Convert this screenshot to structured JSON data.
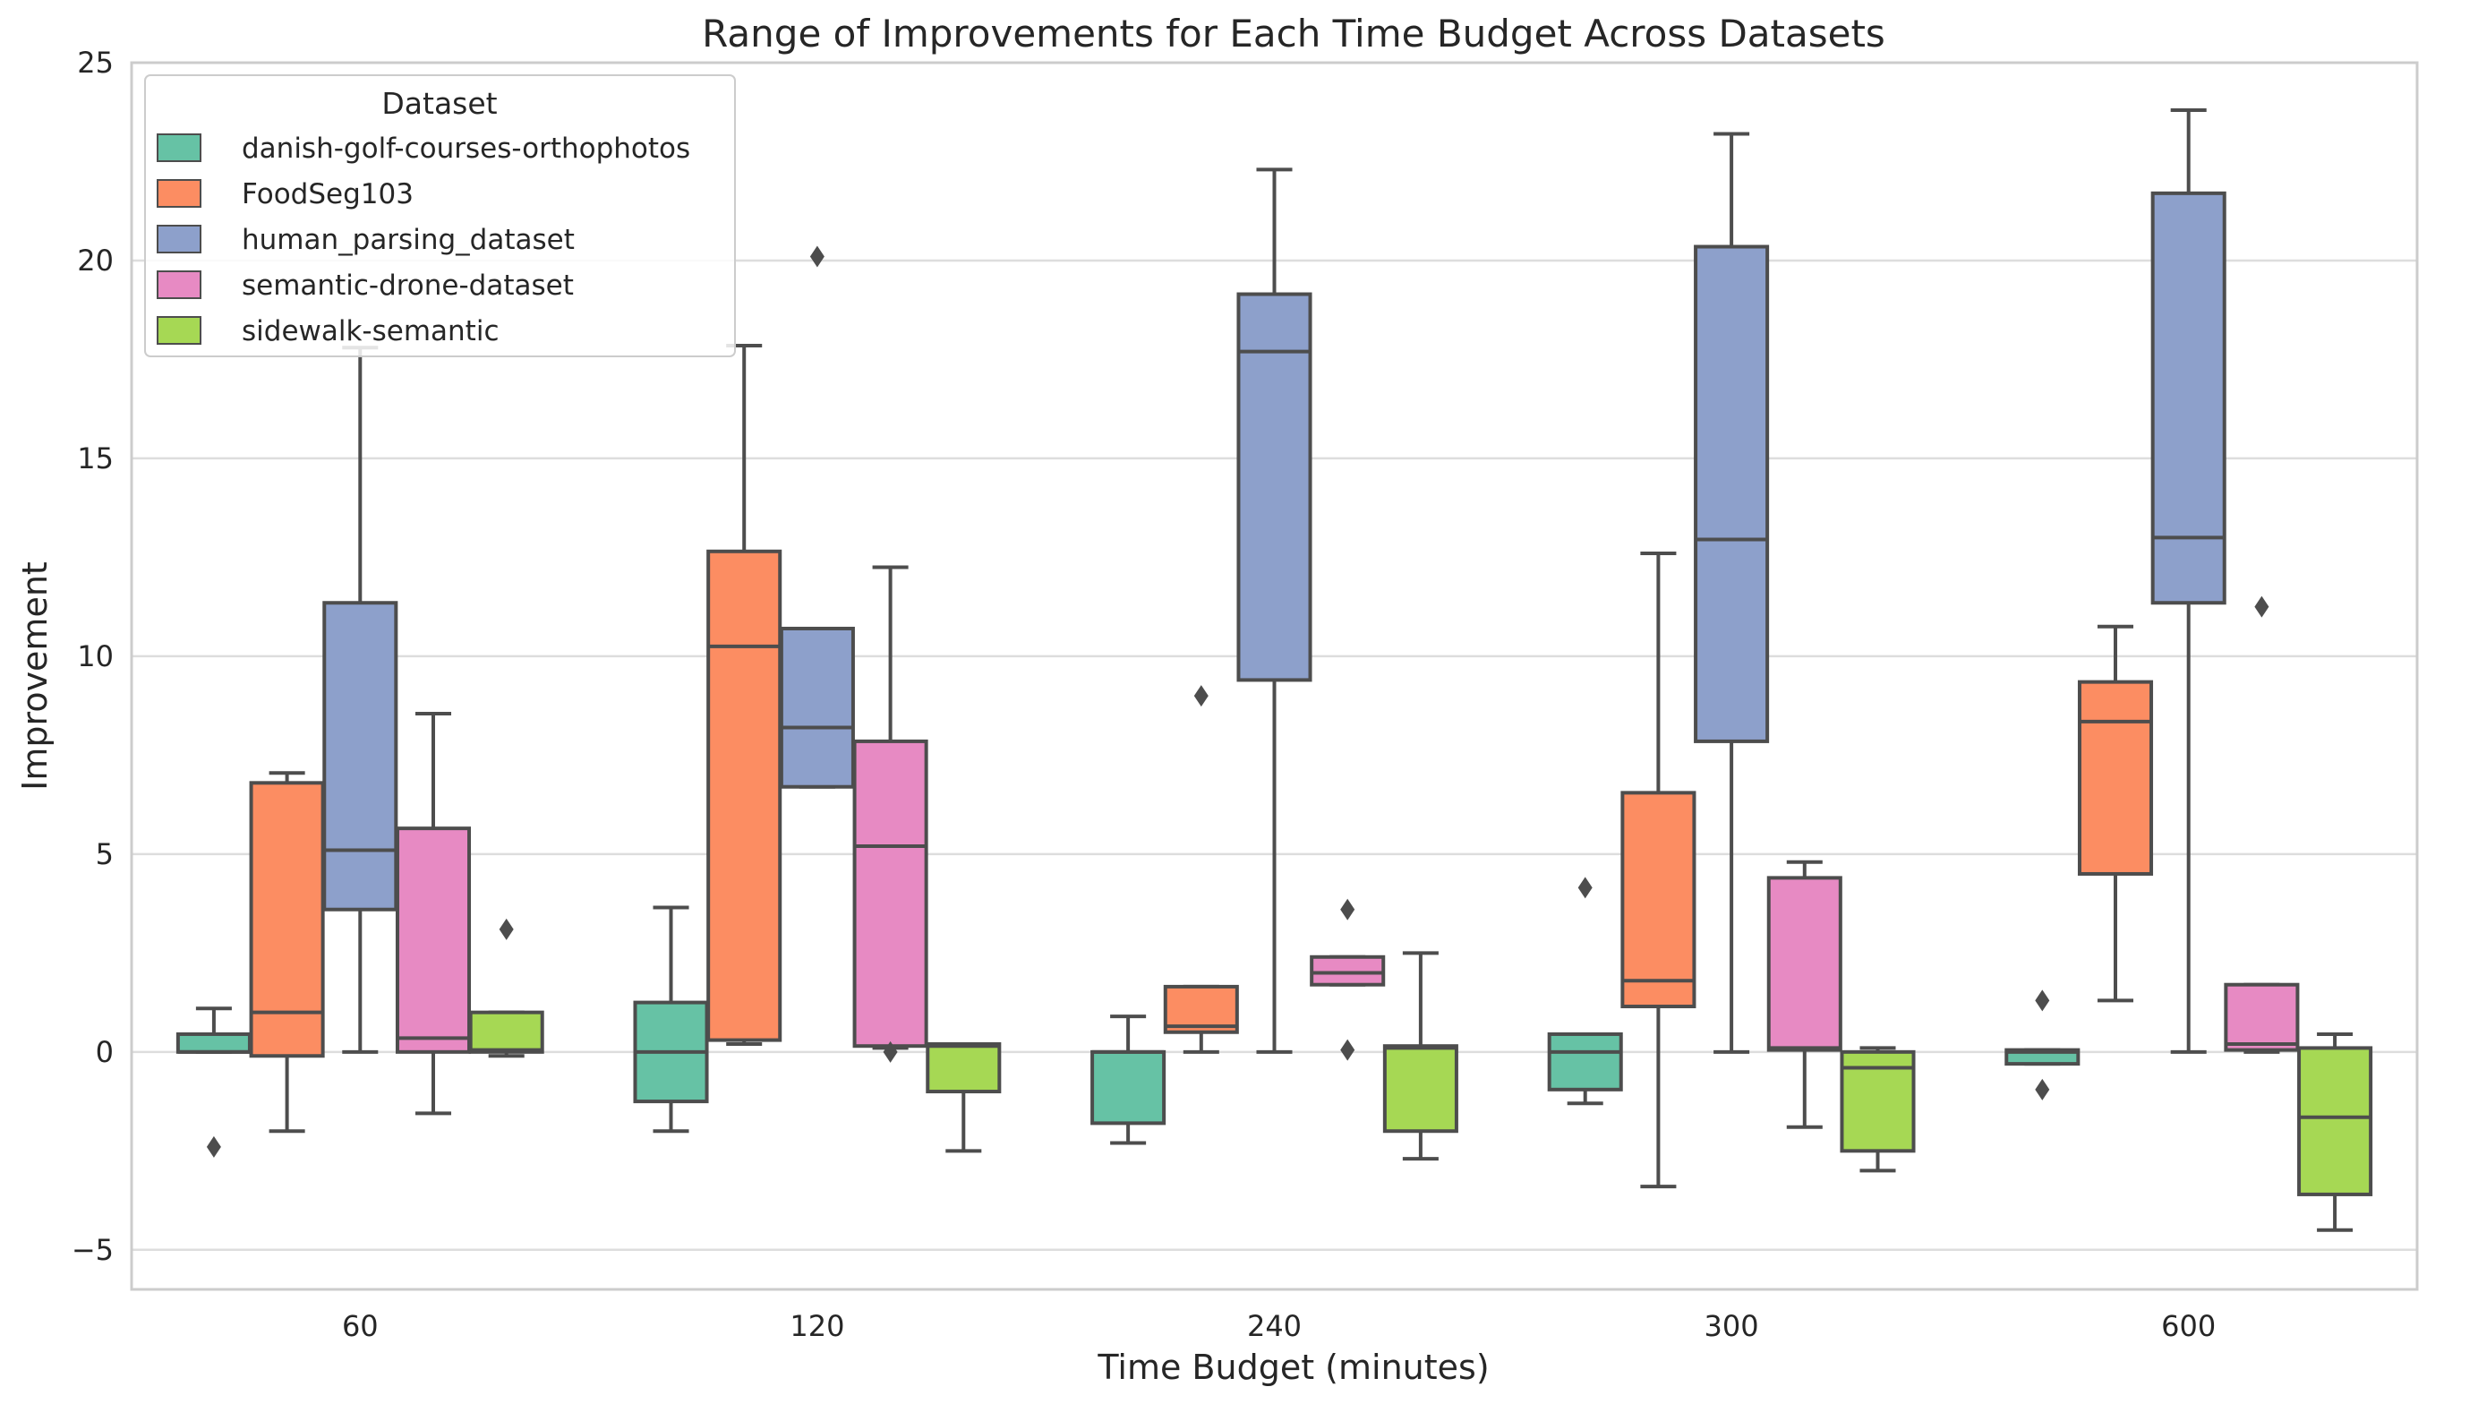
{
  "chart_data": {
    "type": "box",
    "title": "Range of Improvements for Each Time Budget Across Datasets",
    "xlabel": "Time Budget (minutes)",
    "ylabel": "Improvement",
    "categories": [
      "60",
      "120",
      "240",
      "300",
      "600"
    ],
    "ylim": [
      -6,
      25
    ],
    "yticks": [
      -5,
      0,
      5,
      10,
      15,
      20,
      25
    ],
    "grid": "horizontal",
    "legend": {
      "title": "Dataset",
      "placement": "top-left"
    },
    "series": [
      {
        "name": "danish-golf-courses-orthophotos",
        "color": "#66c2a5",
        "boxes": [
          {
            "whislo": 0.0,
            "q1": 0.0,
            "med": 0.0,
            "q3": 0.45,
            "whishi": 1.1,
            "fliers": [
              -2.4
            ]
          },
          {
            "whislo": -2.0,
            "q1": -1.25,
            "med": 0.0,
            "q3": 1.25,
            "whishi": 3.65,
            "fliers": []
          },
          {
            "whislo": -2.3,
            "q1": -1.8,
            "med": 0.0,
            "q3": 0.0,
            "whishi": 0.9,
            "fliers": []
          },
          {
            "whislo": -1.3,
            "q1": -0.95,
            "med": 0.0,
            "q3": 0.45,
            "whishi": 0.45,
            "fliers": [
              4.15
            ]
          },
          {
            "whislo": -0.3,
            "q1": -0.3,
            "med": 0.0,
            "q3": 0.05,
            "whishi": 0.05,
            "fliers": [
              1.3,
              -0.95
            ]
          }
        ]
      },
      {
        "name": "FoodSeg103",
        "color": "#fc8d62",
        "boxes": [
          {
            "whislo": -2.0,
            "q1": -0.1,
            "med": 1.0,
            "q3": 6.8,
            "whishi": 7.05,
            "fliers": []
          },
          {
            "whislo": 0.2,
            "q1": 0.3,
            "med": 10.25,
            "q3": 12.65,
            "whishi": 17.85,
            "fliers": []
          },
          {
            "whislo": 0.0,
            "q1": 0.5,
            "med": 0.65,
            "q3": 1.65,
            "whishi": 1.65,
            "fliers": [
              9.0
            ]
          },
          {
            "whislo": -3.4,
            "q1": 1.15,
            "med": 1.8,
            "q3": 6.55,
            "whishi": 12.6,
            "fliers": []
          },
          {
            "whislo": 1.3,
            "q1": 4.5,
            "med": 8.35,
            "q3": 9.35,
            "whishi": 10.75,
            "fliers": []
          }
        ]
      },
      {
        "name": "human_parsing_dataset",
        "color": "#8da0cb",
        "boxes": [
          {
            "whislo": 0.0,
            "q1": 3.6,
            "med": 5.1,
            "q3": 11.35,
            "whishi": 17.8,
            "fliers": []
          },
          {
            "whislo": 6.7,
            "q1": 6.7,
            "med": 8.2,
            "q3": 10.7,
            "whishi": 10.7,
            "fliers": [
              20.1
            ]
          },
          {
            "whislo": 0.0,
            "q1": 9.4,
            "med": 17.7,
            "q3": 19.15,
            "whishi": 22.3,
            "fliers": []
          },
          {
            "whislo": 0.0,
            "q1": 7.85,
            "med": 12.95,
            "q3": 20.35,
            "whishi": 23.2,
            "fliers": []
          },
          {
            "whislo": 0.0,
            "q1": 11.35,
            "med": 13.0,
            "q3": 21.7,
            "whishi": 23.8,
            "fliers": []
          }
        ]
      },
      {
        "name": "semantic-drone-dataset",
        "color": "#e78ac3",
        "boxes": [
          {
            "whislo": -1.55,
            "q1": 0.0,
            "med": 0.35,
            "q3": 5.65,
            "whishi": 8.55,
            "fliers": []
          },
          {
            "whislo": 0.1,
            "q1": 0.15,
            "med": 5.2,
            "q3": 7.85,
            "whishi": 12.25,
            "fliers": [
              0.0
            ]
          },
          {
            "whislo": 1.7,
            "q1": 1.7,
            "med": 2.0,
            "q3": 2.4,
            "whishi": 2.4,
            "fliers": [
              3.6,
              0.05
            ]
          },
          {
            "whislo": -1.9,
            "q1": 0.05,
            "med": 0.1,
            "q3": 4.4,
            "whishi": 4.8,
            "fliers": []
          },
          {
            "whislo": 0.0,
            "q1": 0.05,
            "med": 0.2,
            "q3": 1.7,
            "whishi": 1.7,
            "fliers": [
              11.25
            ]
          }
        ]
      },
      {
        "name": "sidewalk-semantic",
        "color": "#a6d854",
        "boxes": [
          {
            "whislo": -0.1,
            "q1": 0.0,
            "med": 0.05,
            "q3": 1.0,
            "whishi": 1.0,
            "fliers": [
              3.1
            ]
          },
          {
            "whislo": -2.5,
            "q1": -1.0,
            "med": 0.15,
            "q3": 0.2,
            "whishi": 0.2,
            "fliers": []
          },
          {
            "whislo": -2.7,
            "q1": -2.0,
            "med": 0.1,
            "q3": 0.15,
            "whishi": 2.5,
            "fliers": []
          },
          {
            "whislo": -3.0,
            "q1": -2.5,
            "med": -0.4,
            "q3": 0.0,
            "whishi": 0.1,
            "fliers": []
          },
          {
            "whislo": -4.5,
            "q1": -3.6,
            "med": -1.65,
            "q3": 0.1,
            "whishi": 0.45,
            "fliers": []
          }
        ]
      }
    ]
  }
}
